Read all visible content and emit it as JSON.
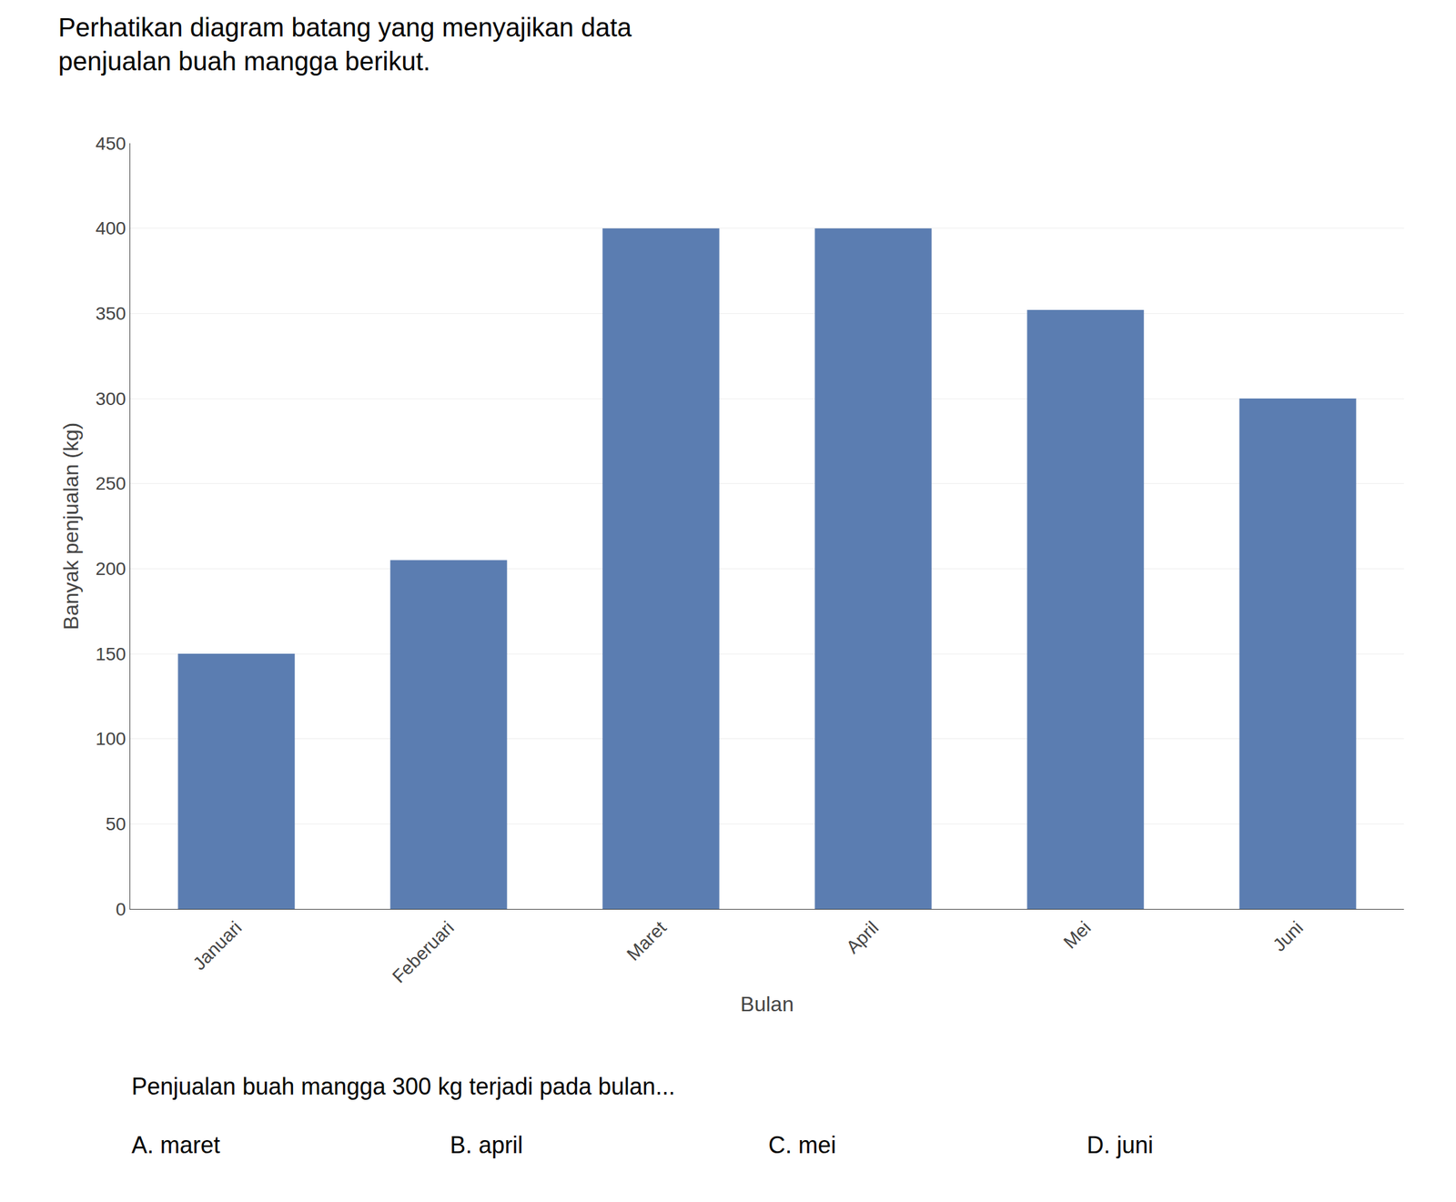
{
  "chart_data": {
    "type": "bar",
    "title": "Perhatikan diagram batang yang menyajikan data",
    "subtitle": "penjualan buah mangga berikut.",
    "categories": [
      "Januari",
      "Feberuari",
      "Maret",
      "April",
      "Mei",
      "Juni"
    ],
    "values": [
      150,
      205,
      400,
      400,
      352,
      300
    ],
    "color": "#5B7DB1",
    "xlabel": "Bulan",
    "ylabel": "Banyak penjualan (kg)",
    "ylim": [
      0,
      450
    ],
    "yticks": [
      0,
      50,
      100,
      150,
      200,
      250,
      300,
      350,
      400,
      450
    ],
    "grid": true,
    "annotations": [
      "Penjualan buah mangga 300 kg terjadi pada bulan...",
      "A. maret",
      "B. april",
      "C. mei",
      "D. juni"
    ]
  }
}
